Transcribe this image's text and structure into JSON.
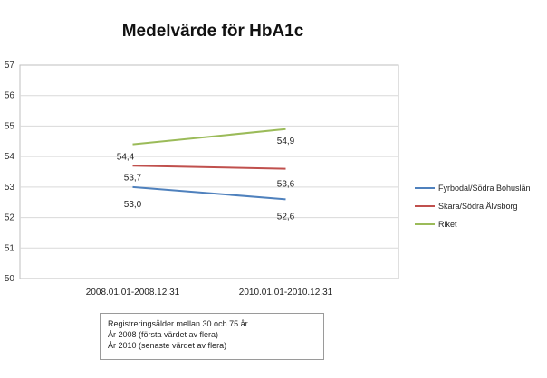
{
  "chart_data": {
    "type": "line",
    "title": "Medelvärde för HbA1c",
    "categories": [
      "2008.01.01-2008.12.31",
      "2010.01.01-2010.12.31"
    ],
    "ylim": [
      50,
      57
    ],
    "yticks": [
      "50",
      "51",
      "52",
      "53",
      "54",
      "55",
      "56",
      "57"
    ],
    "grid": true,
    "legend_position": "right",
    "series": [
      {
        "name": "Fyrbodal/Södra Bohuslän",
        "values": [
          53.0,
          52.6
        ],
        "labels": [
          "53,0",
          "52,6"
        ],
        "color": "#4f81bd"
      },
      {
        "name": "Skara/Södra Älvsborg",
        "values": [
          53.7,
          53.6
        ],
        "labels": [
          "53,7",
          "53,6"
        ],
        "color": "#c0504d"
      },
      {
        "name": "Riket",
        "values": [
          54.4,
          54.9
        ],
        "labels": [
          "54,4",
          "54,9"
        ],
        "color": "#9bbb59"
      }
    ]
  },
  "note": {
    "lines": [
      "Registreringsålder mellan 30 och 75 år",
      "År 2008 (första värdet av flera)",
      "År 2010 (senaste värdet av flera)"
    ]
  }
}
